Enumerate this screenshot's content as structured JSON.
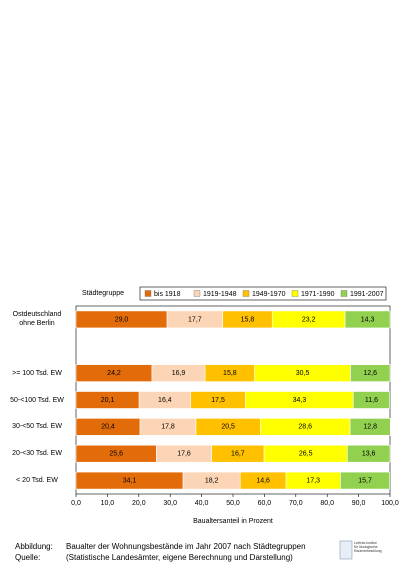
{
  "chart_data": {
    "type": "stacked-barh",
    "legend_title": "Städtegruppe",
    "xlabel": "Baualtersanteil in Prozent",
    "categories": [
      "Ostdeutschland\nohne Berlin",
      null,
      ">= 100 Tsd. EW",
      "50-<100 Tsd. EW",
      "30-<50 Tsd. EW",
      "20-<30 Tsd. EW",
      "< 20 Tsd. EW"
    ],
    "series": [
      {
        "name": "bis 1918",
        "color": "#e36c0a",
        "values": [
          29.0,
          null,
          24.2,
          20.1,
          20.4,
          25.6,
          34.1
        ],
        "value_labels": [
          "29,0",
          null,
          "24,2",
          "20,1",
          "20,4",
          "25,6",
          "34,1"
        ]
      },
      {
        "name": "1919-1948",
        "color": "#fbd5b5",
        "values": [
          17.7,
          null,
          16.9,
          16.4,
          17.8,
          17.6,
          18.2
        ],
        "value_labels": [
          "17,7",
          null,
          "16,9",
          "16,4",
          "17,8",
          "17,6",
          "18,2"
        ]
      },
      {
        "name": "1949-1970",
        "color": "#ffc000",
        "values": [
          15.8,
          null,
          15.8,
          17.5,
          20.5,
          16.7,
          14.6
        ],
        "value_labels": [
          "15,8",
          null,
          "15,8",
          "17,5",
          "20,5",
          "16,7",
          "14,6"
        ]
      },
      {
        "name": "1971-1990",
        "color": "#ffff00",
        "values": [
          23.2,
          null,
          30.5,
          34.3,
          28.6,
          26.5,
          17.3
        ],
        "value_labels": [
          "23,2",
          null,
          "30,5",
          "34,3",
          "28,6",
          "26,5",
          "17,3"
        ]
      },
      {
        "name": "1991-2007",
        "color": "#92d050",
        "values": [
          14.3,
          null,
          12.6,
          11.6,
          12.8,
          13.6,
          15.7
        ],
        "value_labels": [
          "14,3",
          null,
          "12,6",
          "11,6",
          "12,8",
          "13,6",
          "15,7"
        ]
      }
    ],
    "xlim": [
      0,
      100
    ],
    "xticks": [
      {
        "value": 0,
        "label": "0,0"
      },
      {
        "value": 10,
        "label": "10,0"
      },
      {
        "value": 20,
        "label": "20,0"
      },
      {
        "value": 30,
        "label": "30,0"
      },
      {
        "value": 40,
        "label": "40,0"
      },
      {
        "value": 50,
        "label": "50,0"
      },
      {
        "value": 60,
        "label": "60,0"
      },
      {
        "value": 70,
        "label": "70,0"
      },
      {
        "value": 80,
        "label": "80,0"
      },
      {
        "value": 90,
        "label": "90,0"
      },
      {
        "value": 100,
        "label": "100,0"
      }
    ],
    "grid": false,
    "legend": "top"
  },
  "footer": {
    "rows": [
      [
        "Abbildung:",
        "Baualter der Wohnungsbestände im Jahr 2007 nach Städtegruppen"
      ],
      [
        "Quelle:",
        "(Statistische Landesämter, eigene Berechnung und Darstellung)"
      ]
    ],
    "logo": "Leibniz-Institut\nfür ökologische\nRaumentwicklung"
  }
}
